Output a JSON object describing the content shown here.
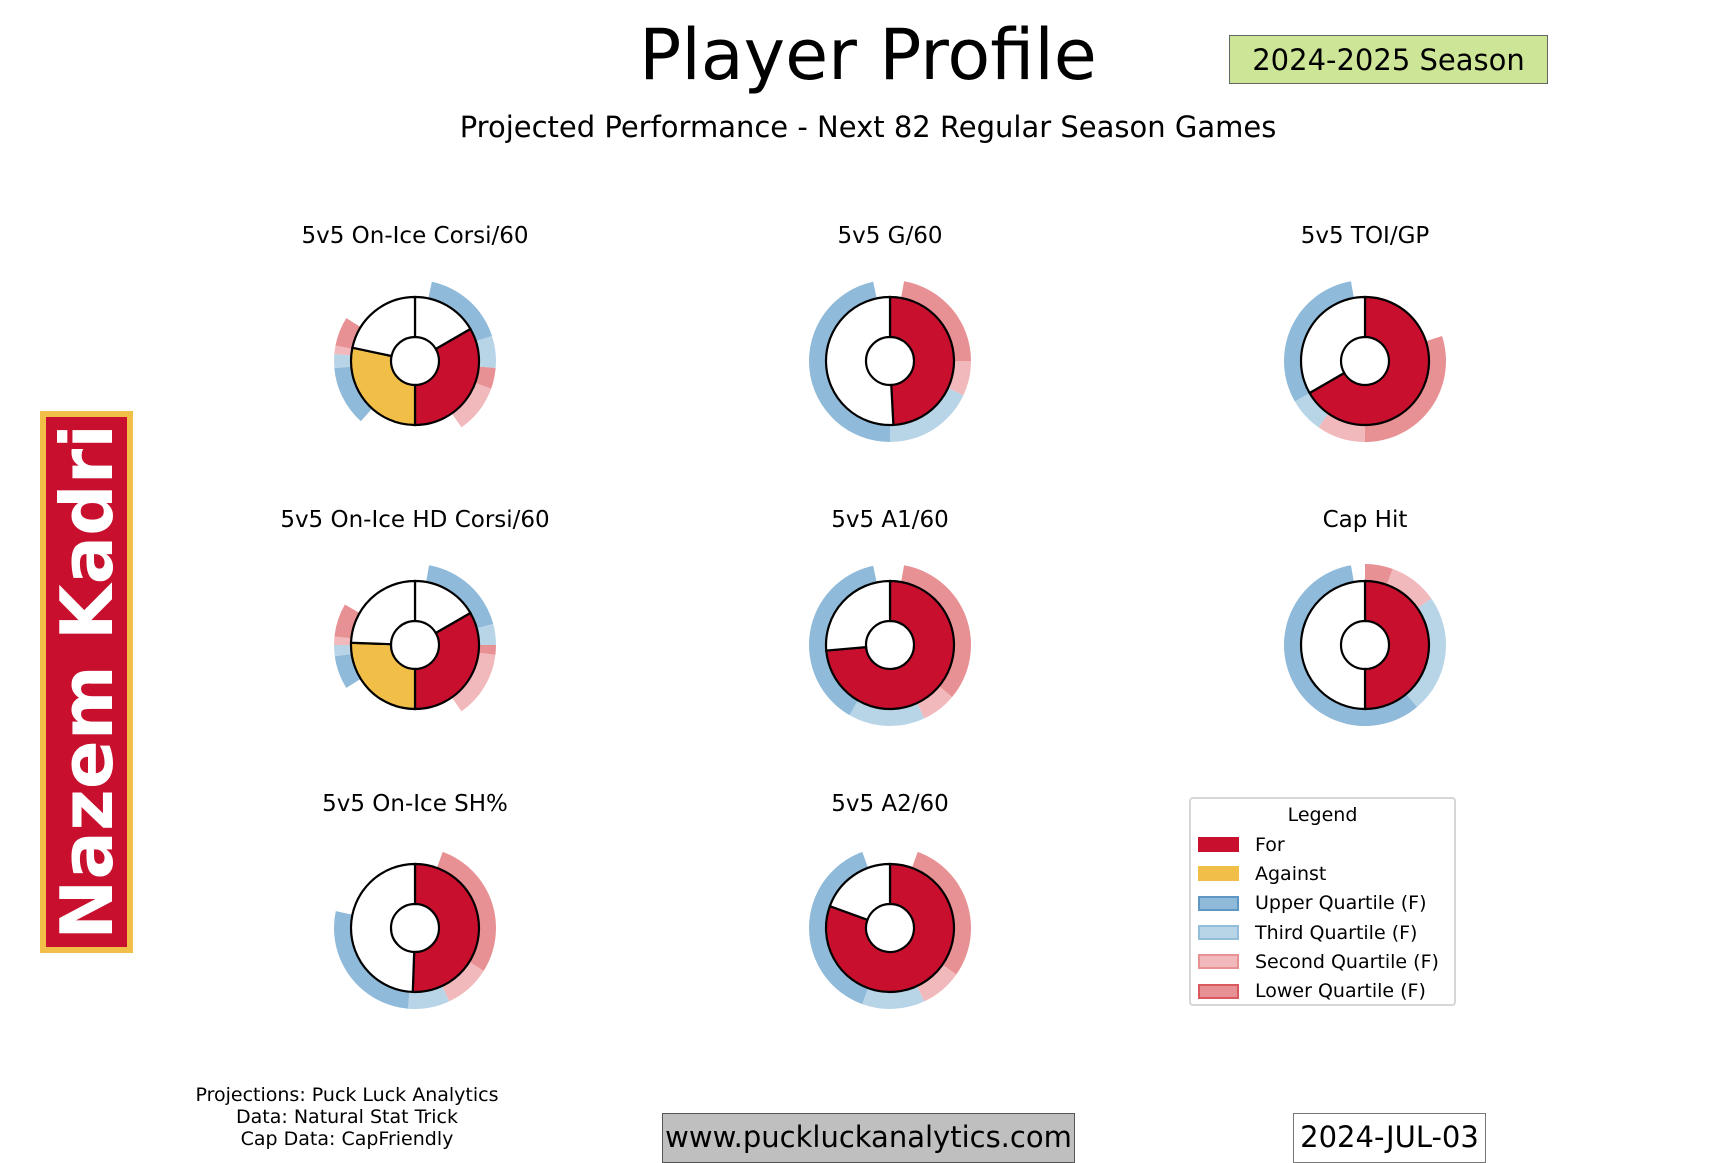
{
  "header": {
    "title": "Player Profile",
    "subtitle": "Projected Performance - Next 82 Regular Season Games",
    "season": "2024-2025 Season"
  },
  "player": {
    "name": "Nazem Kadri"
  },
  "footer": {
    "credits": [
      "Projections: Puck Luck Analytics",
      "Data: Natural Stat Trick",
      "Cap Data: CapFriendly"
    ],
    "url": "www.puckluckanalytics.com",
    "date": "2024-JUL-03"
  },
  "colors": {
    "for": "#c8102e",
    "against": "#f1be48",
    "upper": "#8fbad9",
    "third": "#b8d5e8",
    "second": "#f1b9bb",
    "lower": "#e89194",
    "other": "#ffffff"
  },
  "legend": {
    "title": "Legend",
    "items": [
      {
        "label": "For",
        "key": "for",
        "edge": "#c8102e"
      },
      {
        "label": "Against",
        "key": "against",
        "edge": "#f1be48"
      },
      {
        "label": "Upper Quartile (F)",
        "key": "upper",
        "edge": "#5f97c4"
      },
      {
        "label": "Third Quartile (F)",
        "key": "third",
        "edge": "#93bedb"
      },
      {
        "label": "Second Quartile (F)",
        "key": "second",
        "edge": "#e89194"
      },
      {
        "label": "Lower Quartile (F)",
        "key": "lower",
        "edge": "#d9595e"
      }
    ]
  },
  "chart_data": {
    "type": "pie",
    "note": "Donut slices and quartile ring segments given in degrees clockwise from top",
    "charts": [
      {
        "title": "5v5 On-Ice Corsi/60",
        "slices": [
          [
            "other",
            0,
            60
          ],
          [
            "for",
            60,
            180
          ],
          [
            "against",
            180,
            282
          ],
          [
            "other",
            282,
            360
          ]
        ],
        "ring": [
          [
            "upper",
            12,
            72
          ],
          [
            "third",
            72,
            95
          ],
          [
            "lower",
            95,
            110
          ],
          [
            "second",
            110,
            145
          ],
          [
            "upper",
            222,
            265
          ],
          [
            "third",
            265,
            275
          ],
          [
            "second",
            275,
            281
          ],
          [
            "lower",
            281,
            302
          ]
        ]
      },
      {
        "title": "5v5 G/60",
        "slices": [
          [
            "for",
            0,
            177
          ],
          [
            "other",
            177,
            360
          ]
        ],
        "ring": [
          [
            "lower",
            10,
            90
          ],
          [
            "second",
            90,
            115
          ],
          [
            "third",
            115,
            180
          ],
          [
            "upper",
            180,
            348
          ]
        ]
      },
      {
        "title": "5v5 TOI/GP",
        "slices": [
          [
            "for",
            0,
            240
          ],
          [
            "other",
            240,
            360
          ]
        ],
        "ring": [
          [
            "lower",
            72,
            180
          ],
          [
            "second",
            180,
            215
          ],
          [
            "third",
            215,
            240
          ],
          [
            "upper",
            240,
            350
          ]
        ]
      },
      {
        "title": "5v5 On-Ice HD Corsi/60",
        "slices": [
          [
            "other",
            0,
            60
          ],
          [
            "for",
            60,
            180
          ],
          [
            "against",
            180,
            272
          ],
          [
            "other",
            272,
            360
          ]
        ],
        "ring": [
          [
            "upper",
            10,
            75
          ],
          [
            "third",
            75,
            90
          ],
          [
            "lower",
            90,
            97
          ],
          [
            "second",
            97,
            145
          ],
          [
            "upper",
            238,
            262
          ],
          [
            "third",
            262,
            270
          ],
          [
            "second",
            270,
            276
          ],
          [
            "lower",
            276,
            300
          ]
        ]
      },
      {
        "title": "5v5 A1/60",
        "slices": [
          [
            "for",
            0,
            265
          ],
          [
            "other",
            265,
            360
          ]
        ],
        "ring": [
          [
            "lower",
            10,
            130
          ],
          [
            "second",
            130,
            155
          ],
          [
            "third",
            155,
            210
          ],
          [
            "upper",
            210,
            348
          ]
        ]
      },
      {
        "title": "Cap Hit",
        "slices": [
          [
            "for",
            0,
            180
          ],
          [
            "other",
            180,
            360
          ]
        ],
        "ring": [
          [
            "lower",
            0,
            20
          ],
          [
            "second",
            20,
            55
          ],
          [
            "third",
            55,
            140
          ],
          [
            "upper",
            140,
            350
          ]
        ]
      },
      {
        "title": "5v5 On-Ice SH%",
        "slices": [
          [
            "for",
            0,
            182
          ],
          [
            "other",
            182,
            360
          ]
        ],
        "ring": [
          [
            "lower",
            20,
            122
          ],
          [
            "second",
            122,
            155
          ],
          [
            "third",
            155,
            185
          ],
          [
            "upper",
            185,
            282
          ]
        ]
      },
      {
        "title": "5v5 A2/60",
        "slices": [
          [
            "for",
            0,
            290
          ],
          [
            "other",
            290,
            360
          ]
        ],
        "ring": [
          [
            "lower",
            20,
            125
          ],
          [
            "second",
            125,
            155
          ],
          [
            "third",
            155,
            200
          ],
          [
            "upper",
            200,
            340
          ]
        ]
      }
    ]
  }
}
